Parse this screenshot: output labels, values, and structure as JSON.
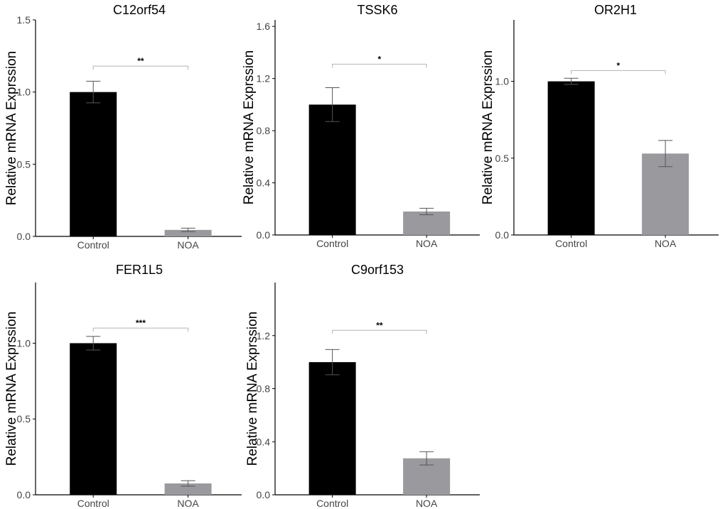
{
  "colors": {
    "control": "#000000",
    "noa": "#9a9a9e",
    "axis": "#000000",
    "bracket": "#b4b4b4",
    "errorbar": "#555555"
  },
  "chart_data": [
    {
      "type": "bar",
      "title": "C12orf54",
      "ylabel": "Relative mRNA Exprssion",
      "categories": [
        "Control",
        "NOA"
      ],
      "values": [
        1.0,
        0.045
      ],
      "errors": [
        0.075,
        0.012
      ],
      "ylim": [
        0,
        1.5
      ],
      "yticks": [
        0.0,
        0.5,
        1.0,
        1.5
      ],
      "ytick_labels": [
        "0.0",
        "0.5",
        "1.0",
        "1.5"
      ],
      "significance": "**",
      "bracket_y": 1.18
    },
    {
      "type": "bar",
      "title": "TSSK6",
      "ylabel": "Relative mRNA Exprssion",
      "categories": [
        "Control",
        "NOA"
      ],
      "values": [
        1.0,
        0.18
      ],
      "errors": [
        0.13,
        0.025
      ],
      "ylim": [
        0,
        1.65
      ],
      "yticks": [
        0.0,
        0.4,
        0.8,
        1.2,
        1.6
      ],
      "ytick_labels": [
        "0.0",
        "0.4",
        "0.8",
        "1.2",
        "1.6"
      ],
      "significance": "*",
      "bracket_y": 1.31
    },
    {
      "type": "bar",
      "title": "OR2H1",
      "ylabel": "Relative mRNA Exprssion",
      "categories": [
        "Control",
        "NOA"
      ],
      "values": [
        1.0,
        0.53
      ],
      "errors": [
        0.02,
        0.085
      ],
      "ylim": [
        0,
        1.4
      ],
      "yticks": [
        0.0,
        0.5,
        1.0
      ],
      "ytick_labels": [
        "0.0",
        "0.5",
        "1.0"
      ],
      "significance": "*",
      "bracket_y": 1.07
    },
    {
      "type": "bar",
      "title": "FER1L5",
      "ylabel": "Relative mRNA Exprssion",
      "categories": [
        "Control",
        "NOA"
      ],
      "values": [
        1.0,
        0.075
      ],
      "errors": [
        0.045,
        0.018
      ],
      "ylim": [
        0,
        1.4
      ],
      "yticks": [
        0.0,
        0.5,
        1.0
      ],
      "ytick_labels": [
        "0.0",
        "0.5",
        "1.0"
      ],
      "significance": "***",
      "bracket_y": 1.1
    },
    {
      "type": "bar",
      "title": "C9orf153",
      "ylabel": "Relative mRNA Exprssion",
      "categories": [
        "Control",
        "NOA"
      ],
      "values": [
        1.0,
        0.275
      ],
      "errors": [
        0.095,
        0.05
      ],
      "ylim": [
        0,
        1.6
      ],
      "yticks": [
        0.0,
        0.4,
        0.8,
        1.2
      ],
      "ytick_labels": [
        "0.0",
        "0.4",
        "0.8",
        "1.2"
      ],
      "significance": "**",
      "bracket_y": 1.24
    }
  ]
}
